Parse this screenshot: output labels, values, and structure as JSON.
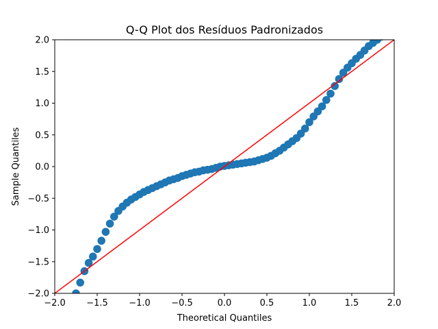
{
  "chart_data": {
    "type": "scatter",
    "title": "Q-Q Plot dos Resíduos Padronizados",
    "xlabel": "Theoretical Quantiles",
    "ylabel": "Sample Quantiles",
    "xlim": [
      -2.0,
      2.0
    ],
    "ylim": [
      -2.0,
      2.0
    ],
    "xticks": [
      "−2.0",
      "−1.5",
      "−1.0",
      "−0.5",
      "0.0",
      "0.5",
      "1.0",
      "1.5",
      "2.0"
    ],
    "yticks": [
      "−2.0",
      "−1.5",
      "−1.0",
      "−0.5",
      "0.0",
      "0.5",
      "1.0",
      "1.5",
      "2.0"
    ],
    "grid": false,
    "series": [
      {
        "kind": "markers",
        "color": "#1f77b4",
        "x": [
          -1.75,
          -1.7,
          -1.65,
          -1.6,
          -1.55,
          -1.5,
          -1.45,
          -1.4,
          -1.35,
          -1.3,
          -1.25,
          -1.2,
          -1.15,
          -1.1,
          -1.05,
          -1.0,
          -0.95,
          -0.9,
          -0.85,
          -0.8,
          -0.75,
          -0.7,
          -0.65,
          -0.6,
          -0.55,
          -0.5,
          -0.45,
          -0.4,
          -0.35,
          -0.3,
          -0.25,
          -0.2,
          -0.15,
          -0.1,
          -0.05,
          0.0,
          0.05,
          0.1,
          0.15,
          0.2,
          0.25,
          0.3,
          0.35,
          0.4,
          0.45,
          0.5,
          0.55,
          0.6,
          0.65,
          0.7,
          0.75,
          0.8,
          0.85,
          0.9,
          0.95,
          1.0,
          1.05,
          1.1,
          1.15,
          1.2,
          1.25,
          1.3,
          1.35,
          1.4,
          1.45,
          1.5,
          1.55,
          1.6,
          1.65,
          1.7,
          1.75,
          1.8,
          1.85
        ],
        "y": [
          -2.0,
          -1.83,
          -1.65,
          -1.52,
          -1.42,
          -1.3,
          -1.17,
          -1.03,
          -0.9,
          -0.79,
          -0.7,
          -0.63,
          -0.57,
          -0.52,
          -0.48,
          -0.44,
          -0.4,
          -0.37,
          -0.34,
          -0.31,
          -0.28,
          -0.25,
          -0.22,
          -0.2,
          -0.18,
          -0.15,
          -0.13,
          -0.11,
          -0.09,
          -0.08,
          -0.06,
          -0.05,
          -0.04,
          -0.02,
          0.0,
          0.01,
          0.02,
          0.03,
          0.04,
          0.05,
          0.06,
          0.07,
          0.08,
          0.1,
          0.12,
          0.14,
          0.17,
          0.21,
          0.25,
          0.3,
          0.35,
          0.4,
          0.45,
          0.52,
          0.6,
          0.7,
          0.79,
          0.87,
          0.95,
          1.05,
          1.15,
          1.27,
          1.38,
          1.48,
          1.56,
          1.63,
          1.7,
          1.76,
          1.83,
          1.9,
          1.95,
          2.0,
          2.05
        ]
      },
      {
        "kind": "reference-line",
        "color": "#ff0000",
        "x": [
          -2.0,
          2.0
        ],
        "y": [
          -2.0,
          2.0
        ]
      }
    ]
  }
}
